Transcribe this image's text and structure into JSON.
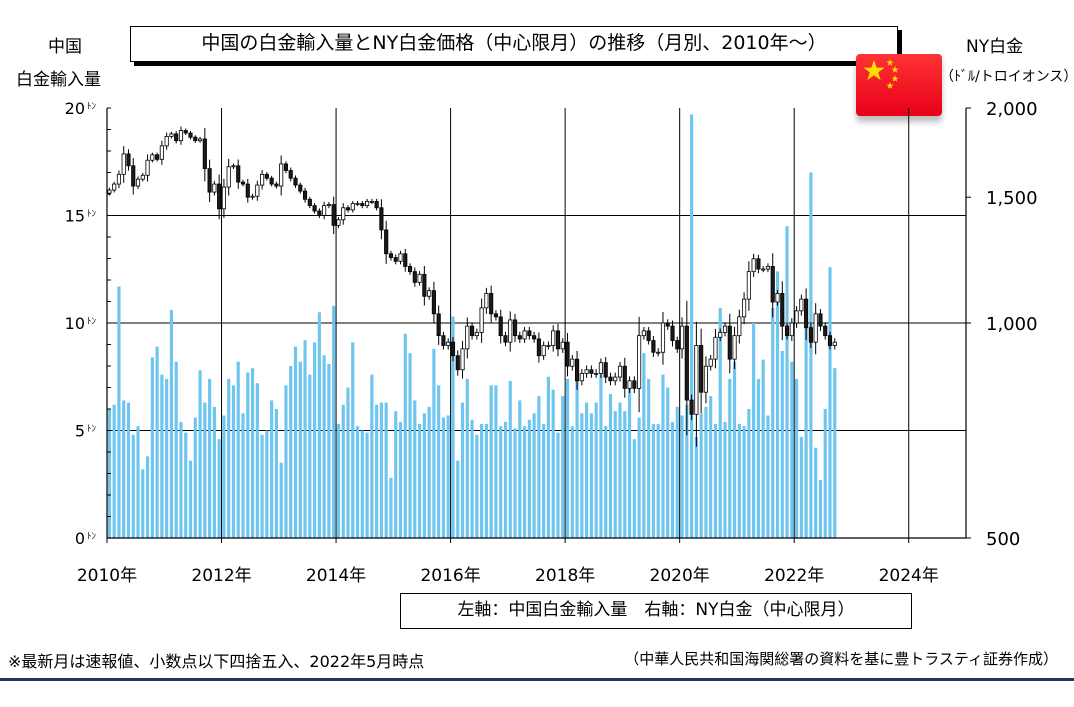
{
  "title": "中国の白金輸入量とNY白金価格（中心限月）の推移（月別、2010年～）",
  "left_axis": {
    "title_line1": "中国",
    "title_line2": "白金輸入量"
  },
  "right_axis": {
    "title_line1": "NY白金",
    "title_line2": "（ﾄﾞﾙ/トロイオンス）"
  },
  "legend": "左軸：中国白金輸入量　右軸：NY白金（中心限月）",
  "footnote_left": "※最新月は速報値、小数点以下四捨五入、2022年5月時点",
  "footnote_right": "（中華人民共和国海関総署の資料を基に豊トラスティ証券作成）",
  "flag": {
    "name": "china-flag",
    "red": "#ee1c25",
    "yellow": "#ffde00"
  },
  "colors": {
    "bars": "#6ec6f0",
    "candle_up": "#ffffff",
    "candle_down": "#1a1a1a",
    "grid": "#000000"
  },
  "chart_data": {
    "type": "bar+candlestick",
    "x_start": "2010-01",
    "x_ticks": [
      "2010年",
      "2012年",
      "2014年",
      "2016年",
      "2018年",
      "2020年",
      "2022年",
      "2024年"
    ],
    "left_axis": {
      "unit": "ﾄﾝ",
      "ticks": [
        "0",
        "5",
        "10",
        "15",
        "20"
      ],
      "range": [
        0,
        20
      ]
    },
    "right_axis": {
      "ticks": [
        "500",
        "1,000",
        "1,500",
        "2,000"
      ],
      "range": [
        500,
        2000
      ]
    },
    "series": [
      {
        "type": "bar",
        "axis": "left",
        "values": [
          6.0,
          6.2,
          11.7,
          6.4,
          6.3,
          4.8,
          5.2,
          3.2,
          3.8,
          8.4,
          8.9,
          7.6,
          7.4,
          10.6,
          8.2,
          5.4,
          4.9,
          3.6,
          5.6,
          7.8,
          6.3,
          7.4,
          6.1,
          4.6,
          5.7,
          7.4,
          7.1,
          8.2,
          5.8,
          7.7,
          7.9,
          7.2,
          4.8,
          5.0,
          6.4,
          6.0,
          3.5,
          7.1,
          8.0,
          8.9,
          8.2,
          9.2,
          7.6,
          9.1,
          10.5,
          8.5,
          8.1,
          10.8,
          5.3,
          6.2,
          7.0,
          9.1,
          5.2,
          5.0,
          4.9,
          7.6,
          6.2,
          6.3,
          6.3,
          2.8,
          5.9,
          5.4,
          9.5,
          8.6,
          6.4,
          5.3,
          5.8,
          6.1,
          8.8,
          7.1,
          5.6,
          5.7,
          10.3,
          3.6,
          6.3,
          7.4,
          5.5,
          4.8,
          5.3,
          5.3,
          7.1,
          7.1,
          5.2,
          5.4,
          7.3,
          5.1,
          6.4,
          5.2,
          5.5,
          5.8,
          6.6,
          5.3,
          7.5,
          6.9,
          4.9,
          6.6,
          7.4,
          5.2,
          7.4,
          5.8,
          6.3,
          5.8,
          6.3,
          7.6,
          5.2,
          6.7,
          5.9,
          6.3,
          5.9,
          7.0,
          4.6,
          5.6,
          8.6,
          7.4,
          5.3,
          5.3,
          7.6,
          7.0,
          5.4,
          6.1,
          5.7,
          6.2,
          19.7,
          4.7,
          5.8,
          6.1,
          6.6,
          5.3,
          10.7,
          5.4,
          7.4,
          8.2,
          5.3,
          5.2,
          6.0,
          10.0,
          7.4,
          8.3,
          5.7,
          10.7,
          12.4,
          8.7,
          14.5,
          8.2,
          7.4,
          4.7,
          10.8,
          17.0,
          4.2,
          2.7,
          6.0,
          12.6,
          7.9
        ]
      },
      {
        "type": "candlestick",
        "axis": "right",
        "values": [
          1535,
          1565,
          1615,
          1725,
          1660,
          1555,
          1590,
          1610,
          1690,
          1720,
          1695,
          1770,
          1825,
          1840,
          1800,
          1860,
          1845,
          1820,
          1800,
          1810,
          1645,
          1525,
          1565,
          1445,
          1550,
          1655,
          1660,
          1575,
          1565,
          1500,
          1505,
          1560,
          1615,
          1595,
          1565,
          1555,
          1670,
          1635,
          1595,
          1560,
          1530,
          1490,
          1460,
          1435,
          1415,
          1460,
          1465,
          1370,
          1395,
          1450,
          1440,
          1470,
          1470,
          1460,
          1480,
          1480,
          1450,
          1350,
          1250,
          1235,
          1220,
          1250,
          1200,
          1180,
          1140,
          1170,
          1090,
          1110,
          1030,
          960,
          930,
          940,
          900,
          860,
          920,
          990,
          960,
          970,
          1050,
          1100,
          1030,
          1020,
          960,
          940,
          1010,
          960,
          950,
          975,
          960,
          950,
          900,
          930,
          930,
          975,
          920,
          940,
          870,
          890,
          830,
          850,
          860,
          850,
          850,
          880,
          840,
          830,
          840,
          870,
          810,
          830,
          810,
          960,
          975,
          945,
          910,
          910,
          1000,
          990,
          945,
          920,
          990,
          780,
          745,
          930,
          800,
          870,
          890,
          955,
          970,
          990,
          890,
          960,
          1020,
          1080,
          1180,
          1230,
          1190,
          1190,
          1200,
          1070,
          1100,
          990,
          960,
          1000,
          1040,
          1080,
          985,
          940,
          1030,
          990,
          960,
          930,
          940
        ]
      }
    ]
  }
}
